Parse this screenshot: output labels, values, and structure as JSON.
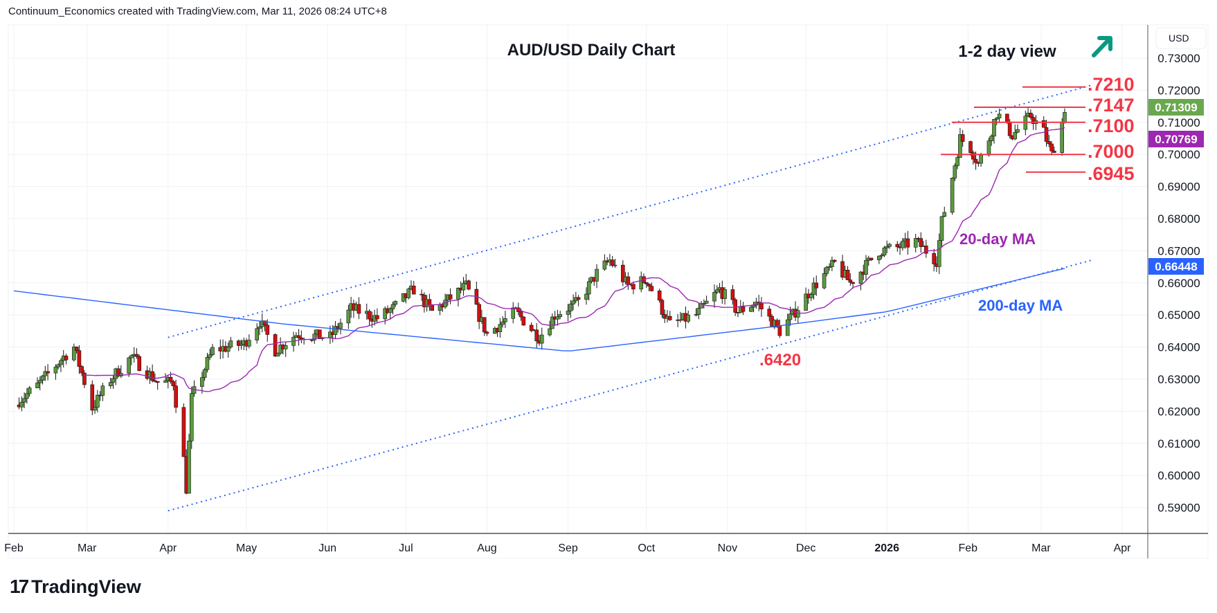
{
  "header": "Continuum_Economics created with TradingView.com, Mar 11, 2026 08:24 UTC+8",
  "logo": "TradingView",
  "chart_data": {
    "type": "candlestick",
    "title": "AUD/USD Daily Chart",
    "subtitle": "1-2 day view",
    "outlook_icon": "up-right-arrow",
    "currency": "USD",
    "ylim": [
      0.585,
      0.735
    ],
    "y_ticks": [
      "0.73000",
      "0.72000",
      "0.71000",
      "0.70000",
      "0.69000",
      "0.68000",
      "0.67000",
      "0.66000",
      "0.65000",
      "0.64000",
      "0.63000",
      "0.62000",
      "0.61000",
      "0.60000",
      "0.59000"
    ],
    "x_ticks": [
      [
        "2025-02-01",
        "Feb"
      ],
      [
        "2025-03-01",
        "Mar"
      ],
      [
        "2025-04-01",
        "Apr"
      ],
      [
        "2025-05-01",
        "May"
      ],
      [
        "2025-06-01",
        "Jun"
      ],
      [
        "2025-07-01",
        "Jul"
      ],
      [
        "2025-08-01",
        "Aug"
      ],
      [
        "2025-09-01",
        "Sep"
      ],
      [
        "2025-10-01",
        "Oct"
      ],
      [
        "2025-11-01",
        "Nov"
      ],
      [
        "2025-12-01",
        "Dec"
      ],
      [
        "2026-01-01",
        "2026"
      ],
      [
        "2026-02-01",
        "Feb"
      ],
      [
        "2026-03-01",
        "Mar"
      ],
      [
        "2026-04-01",
        "Apr"
      ]
    ],
    "close_keypoints": [
      [
        "2025-02-01",
        0.622
      ],
      [
        "2025-02-10",
        0.628
      ],
      [
        "2025-02-20",
        0.637
      ],
      [
        "2025-02-24",
        0.64
      ],
      [
        "2025-03-03",
        0.621
      ],
      [
        "2025-03-10",
        0.63
      ],
      [
        "2025-03-18",
        0.637
      ],
      [
        "2025-03-28",
        0.629
      ],
      [
        "2025-04-03",
        0.629
      ],
      [
        "2025-04-07",
        0.605
      ],
      [
        "2025-04-08",
        0.596
      ],
      [
        "2025-04-10",
        0.624
      ],
      [
        "2025-04-18",
        0.639
      ],
      [
        "2025-04-30",
        0.641
      ],
      [
        "2025-05-06",
        0.648
      ],
      [
        "2025-05-12",
        0.639
      ],
      [
        "2025-05-20",
        0.644
      ],
      [
        "2025-06-02",
        0.643
      ],
      [
        "2025-06-10",
        0.652
      ],
      [
        "2025-06-20",
        0.649
      ],
      [
        "2025-06-26",
        0.652
      ],
      [
        "2025-07-04",
        0.658
      ],
      [
        "2025-07-11",
        0.651
      ],
      [
        "2025-07-24",
        0.659
      ],
      [
        "2025-08-01",
        0.644
      ],
      [
        "2025-08-12",
        0.651
      ],
      [
        "2025-08-21",
        0.643
      ],
      [
        "2025-08-27",
        0.65
      ],
      [
        "2025-09-05",
        0.654
      ],
      [
        "2025-09-12",
        0.663
      ],
      [
        "2025-09-17",
        0.667
      ],
      [
        "2025-09-24",
        0.659
      ],
      [
        "2025-10-01",
        0.661
      ],
      [
        "2025-10-10",
        0.647
      ],
      [
        "2025-10-20",
        0.65
      ],
      [
        "2025-10-29",
        0.658
      ],
      [
        "2025-11-05",
        0.651
      ],
      [
        "2025-11-12",
        0.654
      ],
      [
        "2025-11-21",
        0.645
      ],
      [
        "2025-11-26",
        0.65
      ],
      [
        "2025-12-03",
        0.658
      ],
      [
        "2025-12-12",
        0.666
      ],
      [
        "2025-12-18",
        0.66
      ],
      [
        "2025-12-29",
        0.67
      ],
      [
        "2026-01-05",
        0.671
      ],
      [
        "2026-01-12",
        0.673
      ],
      [
        "2026-01-20",
        0.667
      ],
      [
        "2026-01-22",
        0.679
      ],
      [
        "2026-01-26",
        0.693
      ],
      [
        "2026-01-29",
        0.705
      ],
      [
        "2026-02-02",
        0.702
      ],
      [
        "2026-02-05",
        0.697
      ],
      [
        "2026-02-09",
        0.705
      ],
      [
        "2026-02-12",
        0.713
      ],
      [
        "2026-02-18",
        0.706
      ],
      [
        "2026-02-25",
        0.712
      ],
      [
        "2026-03-02",
        0.707
      ],
      [
        "2026-03-05",
        0.7
      ],
      [
        "2026-03-09",
        0.71
      ],
      [
        "2026-03-10",
        0.7131
      ]
    ],
    "ma200_keypoints": [
      [
        "2025-02-01",
        0.6575
      ],
      [
        "2025-05-15",
        0.6472
      ],
      [
        "2025-09-01",
        0.6387
      ],
      [
        "2025-11-15",
        0.646
      ],
      [
        "2026-01-01",
        0.651
      ],
      [
        "2026-03-10",
        0.6645
      ]
    ],
    "channel_upper": [
      [
        "2025-04-01",
        0.643
      ],
      [
        "2026-03-20",
        0.7215
      ]
    ],
    "channel_lower": [
      [
        "2025-04-01",
        0.589
      ],
      [
        "2026-03-20",
        0.667
      ]
    ],
    "levels": [
      {
        "label": ".7210",
        "price": 0.721
      },
      {
        "label": ".7147",
        "price": 0.7147
      },
      {
        "label": ".7100",
        "price": 0.71
      },
      {
        "label": ".7000",
        "price": 0.7
      },
      {
        "label": ".6945",
        "price": 0.6945
      }
    ],
    "low_annotation": {
      "label": ".6420",
      "price": 0.642,
      "date": "2025-11-21"
    },
    "ma20_label": "20-day MA",
    "ma200_label": "200-day MA",
    "price_tags": [
      {
        "label": "0.71309",
        "color": "#6aa84f"
      },
      {
        "label": "0.70769",
        "color": "#9c27b0"
      },
      {
        "label": "0.66448",
        "color": "#2962ff"
      }
    ],
    "colors": {
      "up": "#5b9a3f",
      "down": "#d10f0f",
      "ma20": "#9c27b0",
      "ma200": "#2962ff",
      "level": "#f23645",
      "arrow": "#089981"
    }
  }
}
